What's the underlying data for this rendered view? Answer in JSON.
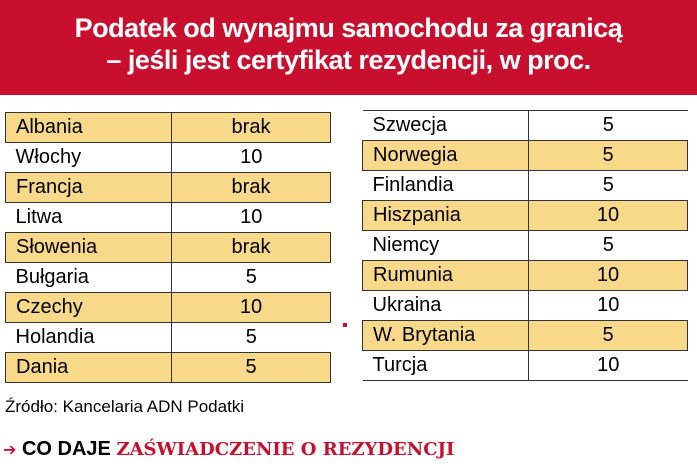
{
  "header": {
    "title_lines": [
      "Podatek od wynajmu samochodu za granicą",
      "– jeśli jest certyfikat rezydencji, w proc."
    ]
  },
  "tables": [
    {
      "rows": [
        [
          "Albania",
          "brak"
        ],
        [
          "Włochy",
          10
        ],
        [
          "Francja",
          "brak"
        ],
        [
          "Litwa",
          10
        ],
        [
          "Słowenia",
          "brak"
        ],
        [
          "Bułgaria",
          5
        ],
        [
          "Czechy",
          10
        ],
        [
          "Holandia",
          5
        ],
        [
          "Dania",
          5
        ]
      ]
    },
    {
      "rows": [
        [
          "Szwecja",
          5
        ],
        [
          "Norwegia",
          5
        ],
        [
          "Finlandia",
          5
        ],
        [
          "Hiszpania",
          10
        ],
        [
          "Niemcy",
          5
        ],
        [
          "Rumunia",
          10
        ],
        [
          "Ukraina",
          10
        ],
        [
          "W. Brytania",
          5
        ],
        [
          "Turcja",
          10
        ]
      ]
    }
  ],
  "source": "Źródło: Kancelaria ADN Podatki",
  "footer": {
    "lead": "CO DAJE",
    "highlight": "ZAŚWIADCZENIE O REZYDENCJI"
  }
}
